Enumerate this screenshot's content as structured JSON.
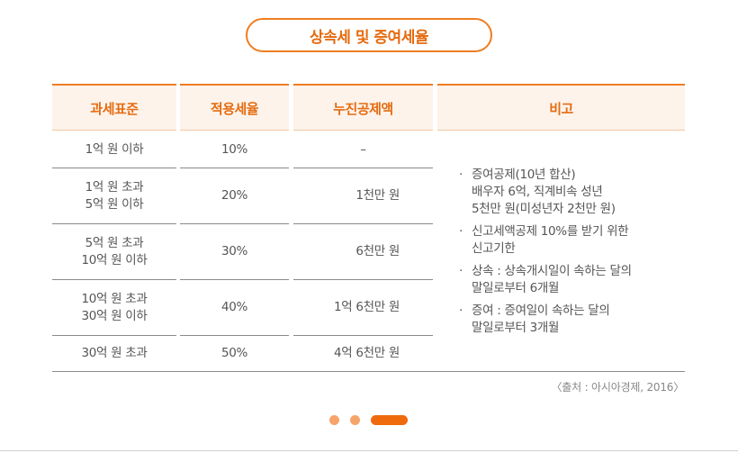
{
  "title": "상속세 및 증여세율",
  "headers": [
    "과세표준",
    "적용세율",
    "누진공제액",
    "비고"
  ],
  "rows": [
    {
      "base": [
        "1억 원 이하"
      ],
      "rate": "10%",
      "deduction": "–"
    },
    {
      "base": [
        "1억 원 초과",
        "5억 원 이하"
      ],
      "rate": "20%",
      "deduction": "1천만 원"
    },
    {
      "base": [
        "5억 원 초과",
        "10억 원 이하"
      ],
      "rate": "30%",
      "deduction": "6천만 원"
    },
    {
      "base": [
        "10억 원 초과",
        "30억 원 이하"
      ],
      "rate": "40%",
      "deduction": "1억 6천만 원"
    },
    {
      "base": [
        "30억 원 초과"
      ],
      "rate": "50%",
      "deduction": "4억 6천만 원"
    }
  ],
  "notes": [
    {
      "bullet": "·",
      "lines": [
        "증여공제(10년 합산)",
        "배우자 6억, 직계비속 성년",
        "5천만 원(미성년자 2천만 원)"
      ]
    },
    {
      "bullet": "·",
      "lines": [
        "신고세액공제 10%를 받기 위한",
        "신고기한"
      ]
    },
    {
      "bullet": "·",
      "lines": [
        "상속 : 상속개시일이 속하는 달의",
        "말일로부터 6개월"
      ]
    },
    {
      "bullet": "·",
      "lines": [
        "증여 : 증여일이 속하는 달의",
        "말일로부터 3개월"
      ]
    }
  ],
  "source": "〈출처 : 아시아경제, 2016〉",
  "pagination": {
    "total": 3,
    "current": 3
  },
  "colors": {
    "accent": "#ef7d22",
    "header_bg": "#fdf3ea",
    "dot_inactive": "#f6a46a",
    "dot_active": "#ef6a0c"
  }
}
